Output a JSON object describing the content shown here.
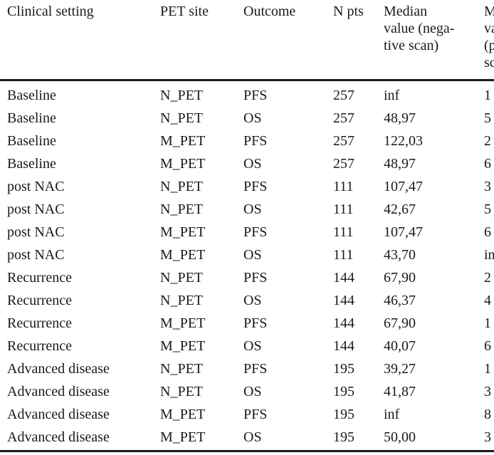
{
  "table": {
    "headers": [
      "Clinical setting",
      "PET site",
      "Outcome",
      "N pts",
      "Median value (nega-tive scan)",
      "Median value (positive scan)"
    ],
    "header_lines": [
      [
        "Clinical setting"
      ],
      [
        "PET site"
      ],
      [
        "Outcome"
      ],
      [
        "N pts"
      ],
      [
        "Median",
        "value (nega-",
        "tive scan)"
      ],
      [
        "M",
        "va",
        "(p",
        "sc"
      ]
    ],
    "rows": [
      [
        "Baseline",
        "N_PET",
        "PFS",
        "257",
        "inf",
        "1"
      ],
      [
        "Baseline",
        "N_PET",
        "OS",
        "257",
        "48,97",
        "5"
      ],
      [
        "Baseline",
        "M_PET",
        "PFS",
        "257",
        "122,03",
        "2"
      ],
      [
        "Baseline",
        "M_PET",
        "OS",
        "257",
        "48,97",
        "6"
      ],
      [
        "post NAC",
        "N_PET",
        "PFS",
        "111",
        "107,47",
        "3"
      ],
      [
        "post NAC",
        "N_PET",
        "OS",
        "111",
        "42,67",
        "5"
      ],
      [
        "post NAC",
        "M_PET",
        "PFS",
        "111",
        "107,47",
        "6"
      ],
      [
        "post NAC",
        "M_PET",
        "OS",
        "111",
        "43,70",
        "in"
      ],
      [
        "Recurrence",
        "N_PET",
        "PFS",
        "144",
        "67,90",
        "2"
      ],
      [
        "Recurrence",
        "N_PET",
        "OS",
        "144",
        "46,37",
        "4"
      ],
      [
        "Recurrence",
        "M_PET",
        "PFS",
        "144",
        "67,90",
        "1"
      ],
      [
        "Recurrence",
        "M_PET",
        "OS",
        "144",
        "40,07",
        "6"
      ],
      [
        "Advanced disease",
        "N_PET",
        "PFS",
        "195",
        "39,27",
        "1"
      ],
      [
        "Advanced disease",
        "N_PET",
        "OS",
        "195",
        "41,87",
        "3"
      ],
      [
        "Advanced disease",
        "M_PET",
        "PFS",
        "195",
        "inf",
        "8"
      ],
      [
        "Advanced disease",
        "M_PET",
        "OS",
        "195",
        "50,00",
        "3"
      ]
    ]
  }
}
